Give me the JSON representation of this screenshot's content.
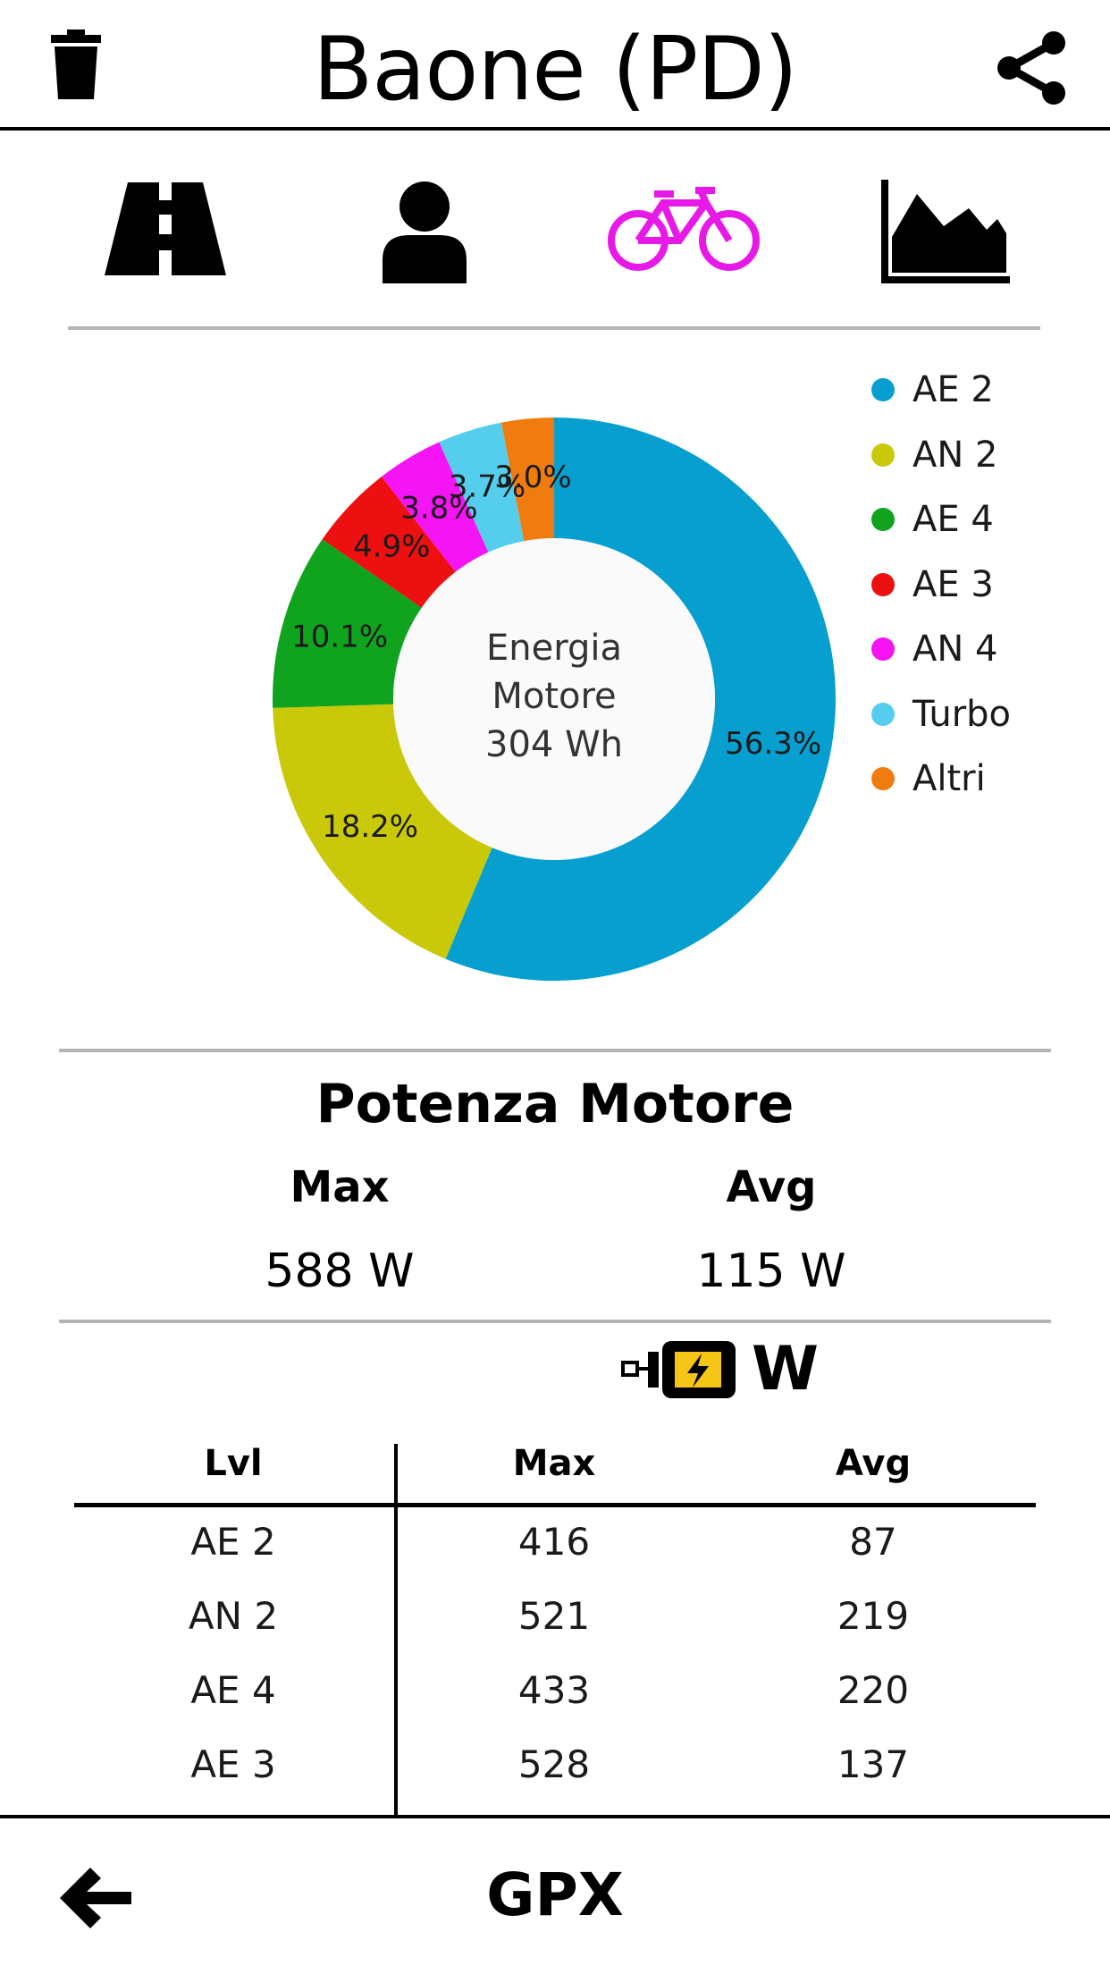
{
  "header": {
    "title": "Baone (PD)",
    "left_icon": "trash-icon",
    "right_icon": "share-icon"
  },
  "tabs": [
    {
      "icon": "road-icon",
      "active": false
    },
    {
      "icon": "user-icon",
      "active": false
    },
    {
      "icon": "bicycle-icon",
      "active": true
    },
    {
      "icon": "area-chart-icon",
      "active": false
    }
  ],
  "colors": {
    "active_tab": "#e619e6",
    "divider": "#b5b5b5"
  },
  "chart_data": {
    "type": "pie",
    "donut": true,
    "center_text": [
      "Energia",
      "Motore",
      "304 Wh"
    ],
    "slices": [
      {
        "label": "AE 2",
        "value": 56.3,
        "display": "56.3%",
        "color": "#079fd0"
      },
      {
        "label": "AN 2",
        "value": 18.2,
        "display": "18.2%",
        "color": "#c9c90a"
      },
      {
        "label": "AE 4",
        "value": 10.1,
        "display": "10.1%",
        "color": "#10a31e"
      },
      {
        "label": "AE 3",
        "value": 4.9,
        "display": "4.9%",
        "color": "#ec1010"
      },
      {
        "label": "AN 4",
        "value": 3.8,
        "display": "3.8%",
        "color": "#f414f4"
      },
      {
        "label": "Turbo",
        "value": 3.7,
        "display": "3.7%",
        "color": "#55cdec"
      },
      {
        "label": "Altri",
        "value": 3.0,
        "display": "3.0%",
        "color": "#f07c0f"
      }
    ],
    "legend_position": "right"
  },
  "power": {
    "title": "Potenza Motore",
    "max_label": "Max",
    "avg_label": "Avg",
    "max_value": "588 W",
    "avg_value": "115 W",
    "unit": "W",
    "motor_icon": "motor-battery-icon"
  },
  "table": {
    "headers": [
      "Lvl",
      "Max",
      "Avg"
    ],
    "rows": [
      [
        "AE 2",
        "416",
        "87"
      ],
      [
        "AN 2",
        "521",
        "219"
      ],
      [
        "AE 4",
        "433",
        "220"
      ],
      [
        "AE 3",
        "528",
        "137"
      ]
    ]
  },
  "footer": {
    "label": "GPX",
    "back_icon": "arrow-left-icon"
  }
}
